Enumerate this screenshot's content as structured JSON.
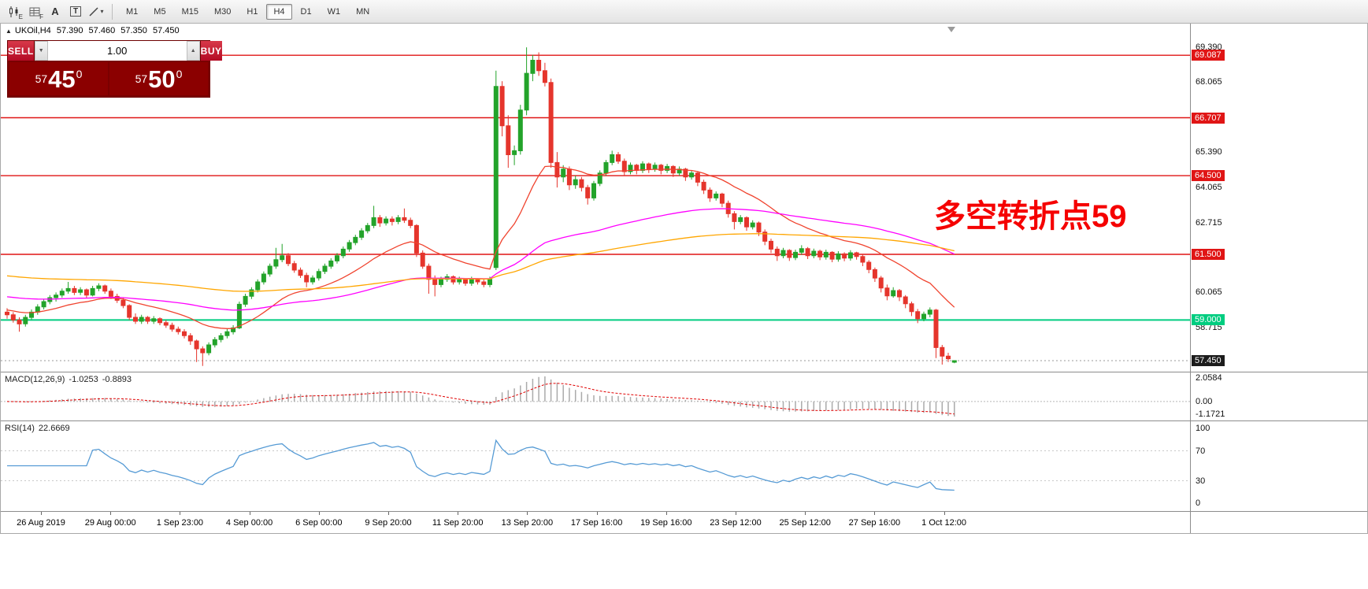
{
  "toolbar": {
    "tools": [
      {
        "name": "candlestick-chart-icon",
        "badge": "E"
      },
      {
        "name": "bar-grid-icon",
        "badge": "F"
      },
      {
        "name": "cursor-tool",
        "label": "A"
      },
      {
        "name": "text-tool",
        "label": "T"
      },
      {
        "name": "trendline-tool",
        "badge": ""
      }
    ],
    "timeframes": [
      "M1",
      "M5",
      "M15",
      "M30",
      "H1",
      "H4",
      "D1",
      "W1",
      "MN"
    ],
    "active_timeframe": "H4"
  },
  "chart_header": {
    "symbol_period": "UKOil,H4",
    "open": "57.390",
    "high": "57.460",
    "low": "57.350",
    "close": "57.450"
  },
  "trade_panel": {
    "sell_label": "SELL",
    "buy_label": "BUY",
    "volume": "1.00",
    "sell_price": {
      "small": "57",
      "big": "45",
      "sup": "0"
    },
    "buy_price": {
      "small": "57",
      "big": "50",
      "sup": "0"
    }
  },
  "annotation": {
    "text": "多空转折点59",
    "color": "#f50000"
  },
  "price_scale": {
    "plain": [
      "69.390",
      "68.065",
      "65.390",
      "64.065",
      "62.715",
      "60.065",
      "58.715"
    ],
    "badges": [
      {
        "value": "69.087",
        "color": "#e01515"
      },
      {
        "value": "66.707",
        "color": "#e01515"
      },
      {
        "value": "64.500",
        "color": "#e01515"
      },
      {
        "value": "61.500",
        "color": "#e01515"
      },
      {
        "value": "59.000",
        "color": "#00cd80"
      },
      {
        "value": "57.450",
        "color": "#1c1c1c"
      }
    ]
  },
  "macd_panel": {
    "name": "MACD(12,26,9)",
    "main_value": "-1.0253",
    "signal_value": "-0.8893",
    "scale_max": "2.0584",
    "scale_zero": "0.00",
    "scale_min": "-1.1721"
  },
  "rsi_panel": {
    "name": "RSI(14)",
    "value": "22.6669",
    "scale": [
      "100",
      "70",
      "30",
      "0"
    ]
  },
  "chart_data": {
    "type": "candlestick",
    "symbol": "UKOil",
    "timeframe": "H4",
    "ylim": [
      57.0,
      70.294
    ],
    "current_price": 57.45,
    "bull_color": "#23a32a",
    "bear_color": "#e5352c",
    "levels": [
      {
        "price": 69.087,
        "color": "#e01515",
        "width": 1.4
      },
      {
        "price": 66.707,
        "color": "#e01515",
        "width": 1.4
      },
      {
        "price": 64.5,
        "color": "#e01515",
        "width": 1.4
      },
      {
        "price": 61.5,
        "color": "#e01515",
        "width": 1.6
      },
      {
        "price": 59.0,
        "color": "#00cd80",
        "width": 2
      }
    ],
    "moving_averages": [
      {
        "name": "fast",
        "color": "#f0432e",
        "period": 20,
        "seed": 59.4
      },
      {
        "name": "mid",
        "color": "#ff00ff",
        "period": 80,
        "seed": 59.9
      },
      {
        "name": "slow",
        "color": "#ffa600",
        "period": 160,
        "seed": 60.7
      }
    ],
    "indicators": {
      "macd": {
        "fast": 12,
        "slow": 26,
        "signal": 9,
        "histogram_color": "#ababab",
        "signal_color": "#e00000"
      },
      "rsi": {
        "period": 14,
        "color": "#569bd5",
        "levels": [
          70,
          30
        ]
      }
    },
    "x_labels": [
      "26 Aug 2019",
      "29 Aug 00:00",
      "1 Sep 23:00",
      "4 Sep 00:00",
      "6 Sep 00:00",
      "9 Sep 20:00",
      "11 Sep 20:00",
      "13 Sep 20:00",
      "17 Sep 16:00",
      "19 Sep 16:00",
      "23 Sep 12:00",
      "25 Sep 12:00",
      "27 Sep 16:00",
      "1 Oct 12:00"
    ],
    "ohlc": [
      [
        59.3,
        59.45,
        59.05,
        59.2
      ],
      [
        59.2,
        59.3,
        58.9,
        59.0
      ],
      [
        59.0,
        59.1,
        58.55,
        58.85
      ],
      [
        58.85,
        59.2,
        58.75,
        59.1
      ],
      [
        59.1,
        59.4,
        59.0,
        59.3
      ],
      [
        59.3,
        59.6,
        59.2,
        59.5
      ],
      [
        59.5,
        59.8,
        59.4,
        59.7
      ],
      [
        59.7,
        59.95,
        59.6,
        59.85
      ],
      [
        59.85,
        60.05,
        59.7,
        59.95
      ],
      [
        59.95,
        60.2,
        59.85,
        60.1
      ],
      [
        60.1,
        60.45,
        60.0,
        60.2
      ],
      [
        60.2,
        60.3,
        59.95,
        60.05
      ],
      [
        60.05,
        60.25,
        59.95,
        60.15
      ],
      [
        60.15,
        60.2,
        59.85,
        59.95
      ],
      [
        59.95,
        60.3,
        59.9,
        60.2
      ],
      [
        60.2,
        60.4,
        60.1,
        60.3
      ],
      [
        60.3,
        60.35,
        60.0,
        60.1
      ],
      [
        60.1,
        60.2,
        59.8,
        59.9
      ],
      [
        59.9,
        60.0,
        59.65,
        59.75
      ],
      [
        59.75,
        59.85,
        59.45,
        59.55
      ],
      [
        59.55,
        59.6,
        59.0,
        59.1
      ],
      [
        59.1,
        59.25,
        58.85,
        58.95
      ],
      [
        58.95,
        59.2,
        58.85,
        59.1
      ],
      [
        59.1,
        59.15,
        58.85,
        58.95
      ],
      [
        58.95,
        59.15,
        58.85,
        59.05
      ],
      [
        59.05,
        59.1,
        58.8,
        58.9
      ],
      [
        58.9,
        59.0,
        58.7,
        58.8
      ],
      [
        58.8,
        58.9,
        58.55,
        58.65
      ],
      [
        58.65,
        58.75,
        58.45,
        58.55
      ],
      [
        58.55,
        58.65,
        58.3,
        58.4
      ],
      [
        58.4,
        58.5,
        58.05,
        58.2
      ],
      [
        58.2,
        58.25,
        57.4,
        57.9
      ],
      [
        57.9,
        58.0,
        57.25,
        57.75
      ],
      [
        57.75,
        58.15,
        57.65,
        58.05
      ],
      [
        58.05,
        58.35,
        57.95,
        58.25
      ],
      [
        58.25,
        58.5,
        58.15,
        58.4
      ],
      [
        58.4,
        58.65,
        58.3,
        58.55
      ],
      [
        58.55,
        58.8,
        58.45,
        58.7
      ],
      [
        58.7,
        59.7,
        58.65,
        59.6
      ],
      [
        59.6,
        60.0,
        59.5,
        59.9
      ],
      [
        59.9,
        60.25,
        59.8,
        60.15
      ],
      [
        60.15,
        60.55,
        60.05,
        60.45
      ],
      [
        60.45,
        60.85,
        60.35,
        60.75
      ],
      [
        60.75,
        61.15,
        60.65,
        61.05
      ],
      [
        61.05,
        61.75,
        60.95,
        61.3
      ],
      [
        61.3,
        61.9,
        61.2,
        61.45
      ],
      [
        61.45,
        61.55,
        61.05,
        61.15
      ],
      [
        61.15,
        61.25,
        60.8,
        60.9
      ],
      [
        60.9,
        61.0,
        60.6,
        60.7
      ],
      [
        60.7,
        60.8,
        60.25,
        60.45
      ],
      [
        60.45,
        60.7,
        60.35,
        60.6
      ],
      [
        60.6,
        60.95,
        60.5,
        60.85
      ],
      [
        60.85,
        61.15,
        60.75,
        61.05
      ],
      [
        61.05,
        61.35,
        60.95,
        61.25
      ],
      [
        61.25,
        61.55,
        61.15,
        61.45
      ],
      [
        61.45,
        61.8,
        61.35,
        61.7
      ],
      [
        61.7,
        62.05,
        61.6,
        61.95
      ],
      [
        61.95,
        62.25,
        61.85,
        62.15
      ],
      [
        62.15,
        62.5,
        62.05,
        62.4
      ],
      [
        62.4,
        62.7,
        62.3,
        62.6
      ],
      [
        62.6,
        63.35,
        62.5,
        62.9
      ],
      [
        62.9,
        63.0,
        62.55,
        62.7
      ],
      [
        62.7,
        62.95,
        62.6,
        62.85
      ],
      [
        62.85,
        62.95,
        62.6,
        62.75
      ],
      [
        62.75,
        63.0,
        62.65,
        62.9
      ],
      [
        62.9,
        63.25,
        62.7,
        62.8
      ],
      [
        62.8,
        62.9,
        62.5,
        62.6
      ],
      [
        62.6,
        62.65,
        61.4,
        61.55
      ],
      [
        61.55,
        61.65,
        60.95,
        61.05
      ],
      [
        61.05,
        61.15,
        60.0,
        60.55
      ],
      [
        60.55,
        60.7,
        59.9,
        60.35
      ],
      [
        60.35,
        60.65,
        60.25,
        60.55
      ],
      [
        60.55,
        60.75,
        60.45,
        60.65
      ],
      [
        60.65,
        60.7,
        60.35,
        60.45
      ],
      [
        60.45,
        60.65,
        60.35,
        60.55
      ],
      [
        60.55,
        60.6,
        60.3,
        60.4
      ],
      [
        60.4,
        60.65,
        60.3,
        60.55
      ],
      [
        60.55,
        60.6,
        60.35,
        60.45
      ],
      [
        60.45,
        60.55,
        60.25,
        60.35
      ],
      [
        60.35,
        60.65,
        60.25,
        60.55
      ],
      [
        61.0,
        68.5,
        60.9,
        67.9
      ],
      [
        67.9,
        68.1,
        66.0,
        66.4
      ],
      [
        66.4,
        66.8,
        64.8,
        65.3
      ],
      [
        65.3,
        65.65,
        64.9,
        65.45
      ],
      [
        65.45,
        67.2,
        65.3,
        67.0
      ],
      [
        67.0,
        69.39,
        66.8,
        68.4
      ],
      [
        68.4,
        69.1,
        68.1,
        68.9
      ],
      [
        68.9,
        69.2,
        68.3,
        68.5
      ],
      [
        68.5,
        68.8,
        67.9,
        68.05
      ],
      [
        68.05,
        68.2,
        64.8,
        65.0
      ],
      [
        65.0,
        65.4,
        64.05,
        64.45
      ],
      [
        64.45,
        64.9,
        64.25,
        64.75
      ],
      [
        64.75,
        64.85,
        63.95,
        64.15
      ],
      [
        64.15,
        64.5,
        64.0,
        64.35
      ],
      [
        64.35,
        64.45,
        63.9,
        64.05
      ],
      [
        64.05,
        64.15,
        63.4,
        63.65
      ],
      [
        63.65,
        64.3,
        63.55,
        64.2
      ],
      [
        64.2,
        64.7,
        64.1,
        64.6
      ],
      [
        64.6,
        65.1,
        64.5,
        65.0
      ],
      [
        65.0,
        65.45,
        64.9,
        65.3
      ],
      [
        65.3,
        65.4,
        64.95,
        65.05
      ],
      [
        65.05,
        65.15,
        64.5,
        64.65
      ],
      [
        64.65,
        65.0,
        64.55,
        64.9
      ],
      [
        64.9,
        64.95,
        64.55,
        64.7
      ],
      [
        64.7,
        65.05,
        64.6,
        64.95
      ],
      [
        64.95,
        65.0,
        64.6,
        64.75
      ],
      [
        64.75,
        65.0,
        64.65,
        64.9
      ],
      [
        64.9,
        64.95,
        64.55,
        64.7
      ],
      [
        64.7,
        64.95,
        64.6,
        64.85
      ],
      [
        64.85,
        64.9,
        64.45,
        64.6
      ],
      [
        64.6,
        64.85,
        64.5,
        64.75
      ],
      [
        64.75,
        64.8,
        64.3,
        64.45
      ],
      [
        64.45,
        64.7,
        64.35,
        64.6
      ],
      [
        64.6,
        64.65,
        64.1,
        64.25
      ],
      [
        64.25,
        64.35,
        63.8,
        63.95
      ],
      [
        63.95,
        64.05,
        63.5,
        63.65
      ],
      [
        63.65,
        63.9,
        63.55,
        63.8
      ],
      [
        63.8,
        63.85,
        63.3,
        63.45
      ],
      [
        63.45,
        63.55,
        62.9,
        63.05
      ],
      [
        63.05,
        63.15,
        62.45,
        62.75
      ],
      [
        62.75,
        63.0,
        62.65,
        62.9
      ],
      [
        62.9,
        62.95,
        62.4,
        62.55
      ],
      [
        62.55,
        62.8,
        62.45,
        62.7
      ],
      [
        62.7,
        62.75,
        62.2,
        62.35
      ],
      [
        62.35,
        62.45,
        61.85,
        62.0
      ],
      [
        62.0,
        62.1,
        61.55,
        61.7
      ],
      [
        61.7,
        61.8,
        61.25,
        61.45
      ],
      [
        61.45,
        61.75,
        61.35,
        61.65
      ],
      [
        61.65,
        61.7,
        61.25,
        61.38
      ],
      [
        61.38,
        61.68,
        61.28,
        61.58
      ],
      [
        61.58,
        61.85,
        61.48,
        61.72
      ],
      [
        61.72,
        61.78,
        61.32,
        61.45
      ],
      [
        61.45,
        61.72,
        61.35,
        61.62
      ],
      [
        61.62,
        61.68,
        61.28,
        61.4
      ],
      [
        61.4,
        61.68,
        61.3,
        61.58
      ],
      [
        61.58,
        61.62,
        61.2,
        61.32
      ],
      [
        61.32,
        61.62,
        61.22,
        61.52
      ],
      [
        61.52,
        61.58,
        61.24,
        61.36
      ],
      [
        61.36,
        61.66,
        61.26,
        61.56
      ],
      [
        61.56,
        61.6,
        61.3,
        61.42
      ],
      [
        61.42,
        61.5,
        61.05,
        61.2
      ],
      [
        61.2,
        61.28,
        60.78,
        60.92
      ],
      [
        60.92,
        61.0,
        60.45,
        60.6
      ],
      [
        60.6,
        60.68,
        60.05,
        60.22
      ],
      [
        60.22,
        60.35,
        59.75,
        59.92
      ],
      [
        59.92,
        60.25,
        59.85,
        60.12
      ],
      [
        60.12,
        60.18,
        59.72,
        59.88
      ],
      [
        59.88,
        59.95,
        59.45,
        59.62
      ],
      [
        59.62,
        59.7,
        59.15,
        59.32
      ],
      [
        59.32,
        59.42,
        58.88,
        59.05
      ],
      [
        59.05,
        59.32,
        58.95,
        59.22
      ],
      [
        59.22,
        59.48,
        59.1,
        59.38
      ],
      [
        59.38,
        59.42,
        57.55,
        57.95
      ],
      [
        57.95,
        58.05,
        57.3,
        57.62
      ],
      [
        57.62,
        57.75,
        57.4,
        57.52
      ],
      [
        57.39,
        57.46,
        57.35,
        57.45
      ]
    ]
  }
}
